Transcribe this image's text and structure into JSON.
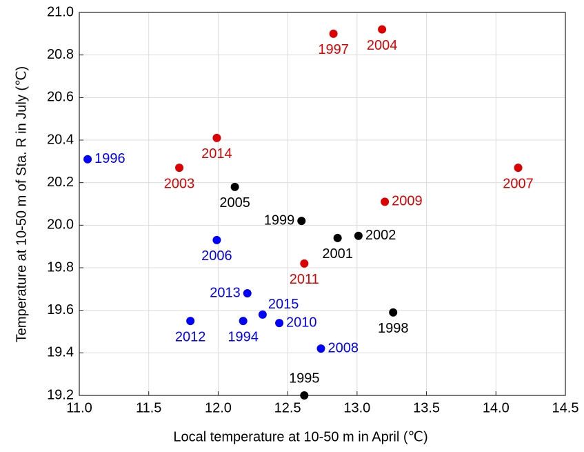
{
  "chart_data": {
    "type": "scatter",
    "xlabel": "Local temperature at 10-50 m in April (℃)",
    "ylabel": "Temperature at 10-50 m of Sta. R in July (℃)",
    "xlim": [
      11.0,
      14.5
    ],
    "xticks": [
      {
        "value": 11,
        "label": "11.0"
      },
      11.5,
      {
        "value": 12,
        "label": "12.0"
      },
      12.5,
      {
        "value": 13,
        "label": "13.0"
      },
      13.5,
      {
        "value": 14,
        "label": "14.0"
      },
      14.5
    ],
    "ylim": [
      19.2,
      21.0
    ],
    "yticks": [
      19.2,
      19.4,
      19.6,
      19.8,
      {
        "value": 20,
        "label": "20.0"
      },
      20.2,
      20.4,
      20.6,
      20.8,
      {
        "value": 21,
        "label": "21.0"
      }
    ],
    "grid": true,
    "points": [
      {
        "label": "1996",
        "x": 11.06,
        "y": 20.31,
        "color": "#0000ff"
      },
      {
        "label": "2003",
        "x": 11.72,
        "y": 20.27,
        "color": "#dd0000"
      },
      {
        "label": "2014",
        "x": 11.99,
        "y": 20.41,
        "color": "#dd0000"
      },
      {
        "label": "2005",
        "x": 12.12,
        "y": 20.18,
        "color": "#000000"
      },
      {
        "label": "2006",
        "x": 11.99,
        "y": 19.93,
        "color": "#0000ff"
      },
      {
        "label": "2013",
        "x": 12.21,
        "y": 19.68,
        "color": "#0000ff"
      },
      {
        "label": "2012",
        "x": 11.8,
        "y": 19.55,
        "color": "#0000ff"
      },
      {
        "label": "1994",
        "x": 12.18,
        "y": 19.55,
        "color": "#0000ff"
      },
      {
        "label": "2015",
        "x": 12.32,
        "y": 19.58,
        "color": "#0000ff"
      },
      {
        "label": "2010",
        "x": 12.44,
        "y": 19.54,
        "color": "#0000ff"
      },
      {
        "label": "2011",
        "x": 12.62,
        "y": 19.82,
        "color": "#dd0000"
      },
      {
        "label": "1999",
        "x": 12.6,
        "y": 20.02,
        "color": "#000000"
      },
      {
        "label": "1995",
        "x": 12.62,
        "y": 19.2,
        "color": "#000000"
      },
      {
        "label": "2008",
        "x": 12.74,
        "y": 19.42,
        "color": "#0000ff"
      },
      {
        "label": "2001",
        "x": 12.86,
        "y": 19.94,
        "color": "#000000"
      },
      {
        "label": "2002",
        "x": 13.01,
        "y": 19.95,
        "color": "#000000"
      },
      {
        "label": "1997",
        "x": 12.83,
        "y": 20.9,
        "color": "#dd0000"
      },
      {
        "label": "2004",
        "x": 13.18,
        "y": 20.92,
        "color": "#dd0000"
      },
      {
        "label": "2009",
        "x": 13.2,
        "y": 20.11,
        "color": "#dd0000"
      },
      {
        "label": "1998",
        "x": 13.26,
        "y": 19.59,
        "color": "#000000"
      },
      {
        "label": "2007",
        "x": 14.16,
        "y": 20.27,
        "color": "#dd0000"
      }
    ]
  }
}
